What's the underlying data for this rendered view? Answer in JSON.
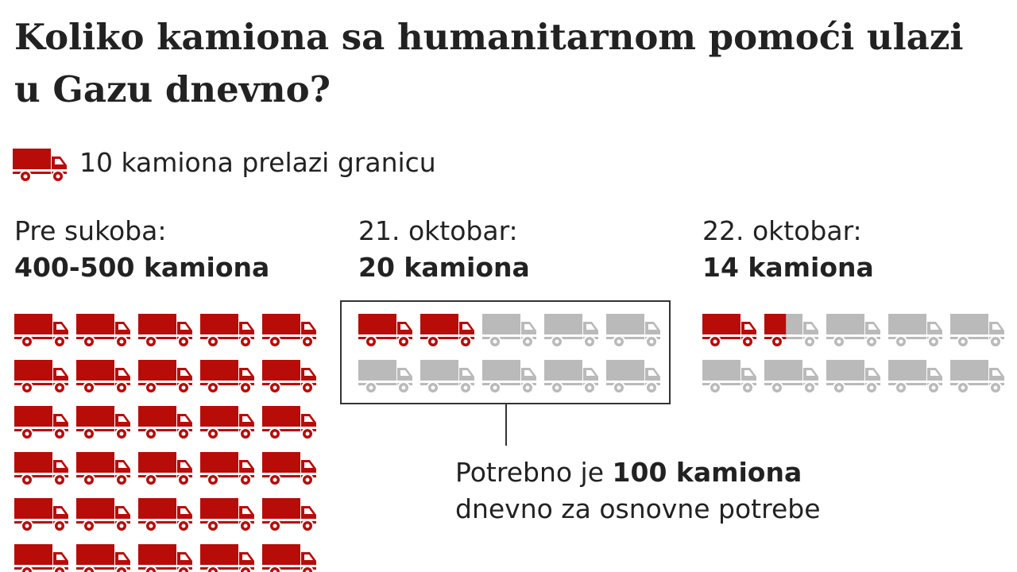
{
  "title": "Koliko kamiona sa humanitarnom pomoći ulazi u Gazu dnevno?",
  "legend": {
    "icon": "truck-icon",
    "label": "10 kamiona prelazi granicu"
  },
  "colors": {
    "filled": "#b80c09",
    "empty": "#bababa",
    "text": "#222222"
  },
  "columns": [
    {
      "date": "Pre sukoba:",
      "count": "400-500 kamiona"
    },
    {
      "date": "21. oktobar:",
      "count": "20 kamiona"
    },
    {
      "date": "22. oktobar:",
      "count": "14 kamiona"
    }
  ],
  "note": {
    "prefix": "Potrebno je",
    "bold": "100 kamiona",
    "rest": "dnevno za osnovne potrebe"
  },
  "chart_data": {
    "type": "pictogram",
    "unit": "10 kamiona prelazi granicu",
    "categories": [
      "Pre sukoba:",
      "21. oktobar:",
      "22. oktobar:"
    ],
    "values_label": [
      "400-500 kamiona",
      "20 kamiona",
      "14 kamiona"
    ],
    "values": [
      450,
      20,
      14
    ],
    "needed_per_day": 100,
    "icons_per_row": 5
  }
}
